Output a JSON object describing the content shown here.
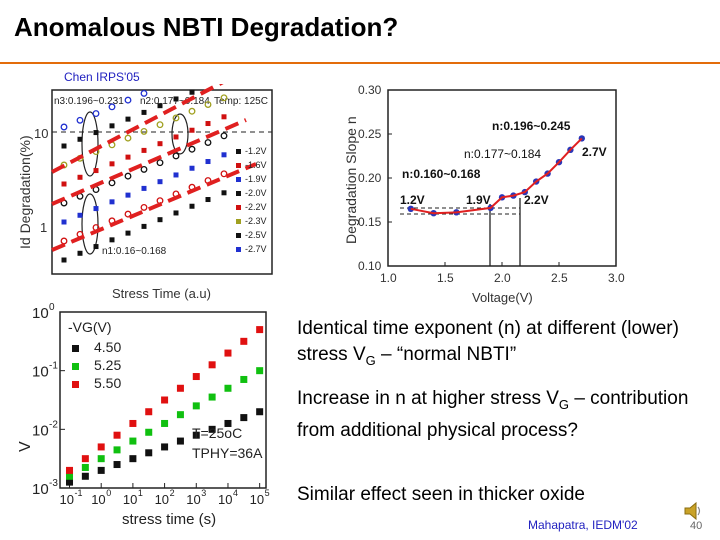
{
  "slide": {
    "title": "Anomalous NBTI Degradation?",
    "citation_top": "Chen IRPS'05",
    "citation_bottom": "Mahapatra, IEDM'02",
    "page_number": "40"
  },
  "bullets": [
    {
      "pre": "Identical time exponent (n) at different (lower) stress V",
      "sub": "G",
      "post": " – “normal NBTI”"
    },
    {
      "pre": "Increase in n at higher stress V",
      "sub": "G",
      "post": " – contribution from additional physical process?"
    },
    {
      "pre": "Similar effect seen in thicker oxide",
      "sub": "",
      "post": ""
    }
  ],
  "chart_data": [
    {
      "type": "scatter",
      "xlabel": "Stress Time (a.u)",
      "ylabel": "Id Degradation(%)",
      "ytick_labels": [
        "10",
        "1"
      ],
      "annotations": [
        "n3:0.196~0.231",
        "n2:0.177~0.184",
        "Temp: 125C",
        "n1:0.16~0.168"
      ],
      "legend": [
        "-1.2V",
        "-1.6V",
        "-1.9V",
        "-2.0V",
        "-2.2V",
        "-2.3V",
        "-2.5V",
        "-2.7V"
      ],
      "series_colors": [
        "#111111",
        "#d01010",
        "#2030d0",
        "#111111",
        "#d01010",
        "#a0a020",
        "#111111",
        "#2030d0"
      ],
      "legend_position": "right"
    },
    {
      "type": "scatter",
      "xlabel": "Voltage(V)",
      "ylabel": "Degradation Slope n",
      "xlim": [
        1.0,
        3.0
      ],
      "ylim": [
        0.1,
        0.3
      ],
      "xticks": [
        "1.0",
        "1.5",
        "2.0",
        "2.5",
        "3.0"
      ],
      "yticks": [
        "0.10",
        "0.15",
        "0.20",
        "0.25",
        "0.30"
      ],
      "annotations": [
        "n:0.196~0.245",
        "n:0.177~0.184",
        "n:0.160~0.168",
        "1.2V",
        "1.9V",
        "2.2V",
        "2.7V"
      ],
      "x": [
        1.2,
        1.4,
        1.6,
        1.9,
        2.0,
        2.1,
        2.2,
        2.3,
        2.4,
        2.5,
        2.6,
        2.7
      ],
      "y": [
        0.165,
        0.16,
        0.161,
        0.166,
        0.178,
        0.18,
        0.184,
        0.196,
        0.205,
        0.218,
        0.232,
        0.245
      ]
    },
    {
      "type": "scatter",
      "xlabel": "stress time (s)",
      "ylabel": "V",
      "ytick_labels": [
        "10",
        "10",
        "10",
        "10"
      ],
      "ytick_exponents": [
        "0",
        "-1",
        "-2",
        "-3"
      ],
      "xtick_labels": [
        "10",
        "10",
        "10",
        "10",
        "10",
        "10",
        "10"
      ],
      "xtick_exponents": [
        "-1",
        "0",
        "1",
        "2",
        "3",
        "4",
        "5"
      ],
      "legend_title": "-VG(V)",
      "legend": [
        "4.50",
        "5.25",
        "5.50"
      ],
      "series_colors": [
        "#111111",
        "#10c010",
        "#e01010"
      ],
      "annotation_temp": "T=25oC",
      "annotation_tphy": "TPHY=36A",
      "series": [
        {
          "name": "4.50",
          "x": [
            -1,
            -0.5,
            0,
            0.5,
            1,
            1.5,
            2,
            2.5,
            3,
            3.5,
            4,
            4.5,
            5
          ],
          "y": [
            -2.9,
            -2.8,
            -2.7,
            -2.6,
            -2.5,
            -2.4,
            -2.3,
            -2.2,
            -2.1,
            -2.0,
            -1.9,
            -1.8,
            -1.7
          ]
        },
        {
          "name": "5.25",
          "x": [
            -1,
            -0.5,
            0,
            0.5,
            1,
            1.5,
            2,
            2.5,
            3,
            3.5,
            4,
            4.5,
            5
          ],
          "y": [
            -2.8,
            -2.65,
            -2.5,
            -2.35,
            -2.2,
            -2.05,
            -1.9,
            -1.75,
            -1.6,
            -1.45,
            -1.3,
            -1.15,
            -1.0
          ]
        },
        {
          "name": "5.50",
          "x": [
            -1,
            -0.5,
            0,
            0.5,
            1,
            1.5,
            2,
            2.5,
            3,
            3.5,
            4,
            4.5,
            5
          ],
          "y": [
            -2.7,
            -2.5,
            -2.3,
            -2.1,
            -1.9,
            -1.7,
            -1.5,
            -1.3,
            -1.1,
            -0.9,
            -0.7,
            -0.5,
            -0.3
          ]
        }
      ]
    }
  ]
}
